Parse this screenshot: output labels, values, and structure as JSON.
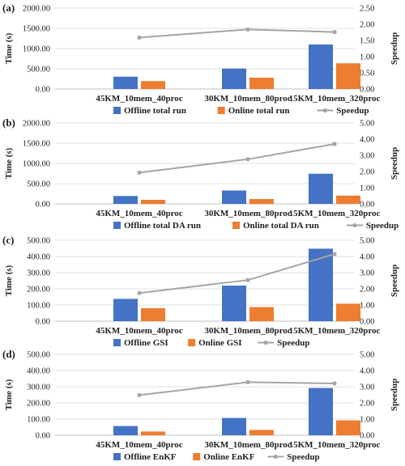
{
  "figure_colors": {
    "offline": "#4472C4",
    "online": "#ED7D31",
    "speedup": "#A5A5A5",
    "grid": "#D9D9D9",
    "axis": "#BFBFBF"
  },
  "chart_data": [
    {
      "panel": "(a)",
      "type": "bar",
      "categories": [
        "45KM_10mem_40proc",
        "30KM_10mem_80proc",
        "15KM_10mem_320proc"
      ],
      "ylabel": "Time (s)",
      "y2label": "Speedup",
      "ylim": [
        0,
        2000
      ],
      "y_ticks": [
        "0.00",
        "500.00",
        "1000.00",
        "1500.00",
        "2000.00"
      ],
      "y2lim": [
        0,
        2.5
      ],
      "y2_ticks": [
        "0.00",
        "0.50",
        "1.00",
        "1.50",
        "2.00",
        "2.50"
      ],
      "grid": true,
      "legend_position": "bottom",
      "series": [
        {
          "name": "Offline total run",
          "type": "bar",
          "values": [
            305,
            505,
            1100
          ]
        },
        {
          "name": "Online total run",
          "type": "bar",
          "values": [
            195,
            280,
            635
          ]
        },
        {
          "name": "Speedup",
          "type": "line",
          "axis": "right",
          "values": [
            1.59,
            1.84,
            1.76
          ]
        }
      ]
    },
    {
      "panel": "(b)",
      "type": "bar",
      "categories": [
        "45KM_10mem_40proc",
        "30KM_10mem_80proc",
        "15KM_10mem_320proc"
      ],
      "ylabel": "Time (s)",
      "y2label": "Speedup",
      "ylim": [
        0,
        2000
      ],
      "y_ticks": [
        "0.00",
        "500.00",
        "1000.00",
        "1500.00",
        "2000.00"
      ],
      "y2lim": [
        0,
        5
      ],
      "y2_ticks": [
        "0.00",
        "1.00",
        "2.00",
        "3.00",
        "4.00",
        "5.00"
      ],
      "grid": true,
      "legend_position": "bottom",
      "series": [
        {
          "name": "Offline total DA run",
          "type": "bar",
          "values": [
            195,
            330,
            745
          ]
        },
        {
          "name": "Online total DA run",
          "type": "bar",
          "values": [
            100,
            120,
            205
          ]
        },
        {
          "name": "Speedup",
          "type": "line",
          "axis": "right",
          "values": [
            1.93,
            2.76,
            3.7
          ]
        }
      ]
    },
    {
      "panel": "(c)",
      "type": "bar",
      "categories": [
        "45KM_10mem_40proc",
        "30KM_10mem_80proc",
        "15KM_10mem_320proc"
      ],
      "ylabel": "Time (s)",
      "y2label": "Speedup",
      "ylim": [
        0,
        500
      ],
      "y_ticks": [
        "0.00",
        "100.00",
        "200.00",
        "300.00",
        "400.00",
        "500.00"
      ],
      "y2lim": [
        0,
        5
      ],
      "y2_ticks": [
        "0.00",
        "1.00",
        "2.00",
        "3.00",
        "4.00",
        "5.00"
      ],
      "grid": true,
      "legend_position": "bottom",
      "series": [
        {
          "name": "Offline GSI",
          "type": "bar",
          "values": [
            138,
            220,
            448
          ]
        },
        {
          "name": "Online GSI",
          "type": "bar",
          "values": [
            80,
            87,
            108
          ]
        },
        {
          "name": "Speedup",
          "type": "line",
          "axis": "right",
          "values": [
            1.74,
            2.54,
            4.15
          ]
        }
      ]
    },
    {
      "panel": "(d)",
      "type": "bar",
      "categories": [
        "45KM_10mem_40proc",
        "30KM_10mem_80proc",
        "15KM_10mem_320proc"
      ],
      "ylabel": "Time (s)",
      "y2label": "Speedup",
      "ylim": [
        0,
        500
      ],
      "y_ticks": [
        "0.00",
        "100.00",
        "200.00",
        "300.00",
        "400.00",
        "500.00"
      ],
      "y2lim": [
        0,
        5
      ],
      "y2_ticks": [
        "0.00",
        "1.00",
        "2.00",
        "3.00",
        "4.00",
        "5.00"
      ],
      "grid": true,
      "legend_position": "bottom",
      "series": [
        {
          "name": "Offline EnKF",
          "type": "bar",
          "values": [
            57,
            107,
            292
          ]
        },
        {
          "name": "Online EnKF",
          "type": "bar",
          "values": [
            23,
            33,
            92
          ]
        },
        {
          "name": "Speedup",
          "type": "line",
          "axis": "right",
          "values": [
            2.48,
            3.28,
            3.2
          ]
        }
      ]
    }
  ]
}
